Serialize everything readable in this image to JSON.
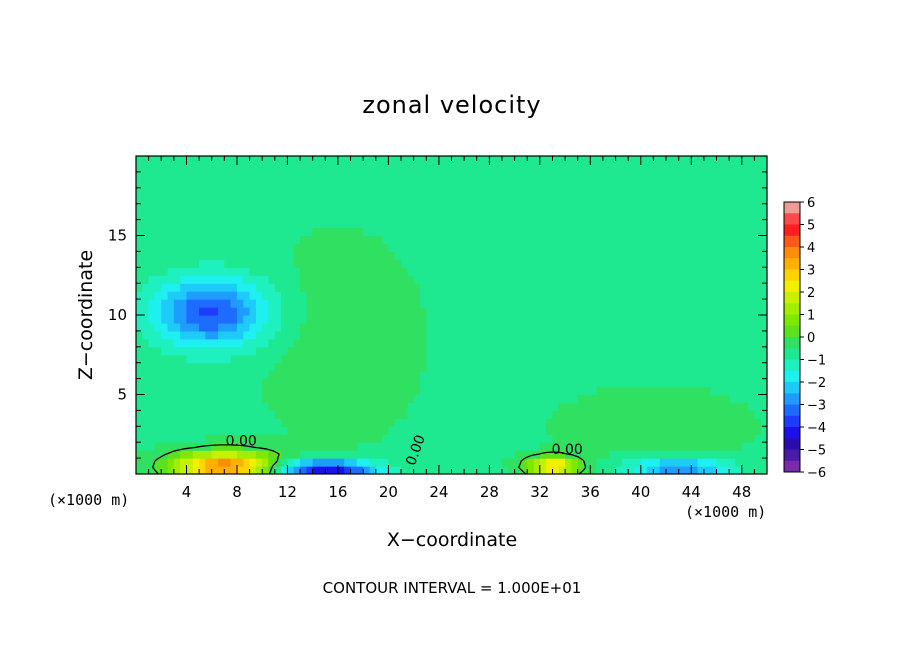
{
  "chart_data": {
    "type": "heatmap",
    "title": "zonal velocity",
    "xlabel": "X−coordinate",
    "ylabel": "Z−coordinate",
    "x_ticks": [
      4,
      8,
      12,
      16,
      20,
      24,
      28,
      32,
      36,
      40,
      44,
      48
    ],
    "y_ticks": [
      5,
      10,
      15
    ],
    "xlim": [
      0,
      50
    ],
    "ylim": [
      0,
      20
    ],
    "x_unit_left": "(×1000 m)",
    "x_unit_right": "(×1000 m)",
    "colorbar": {
      "tick_labels": [
        "6",
        "5",
        "4",
        "3",
        "2",
        "1",
        "0",
        "−1",
        "−2",
        "−3",
        "−4",
        "−5",
        "−6"
      ],
      "levels": [
        {
          "lo": 5.5,
          "hi": 6.0,
          "color": "#f09a9a"
        },
        {
          "lo": 5.0,
          "hi": 5.5,
          "color": "#ff4a4a"
        },
        {
          "lo": 4.5,
          "hi": 5.0,
          "color": "#ff1e1e"
        },
        {
          "lo": 4.0,
          "hi": 4.5,
          "color": "#ff5a1a"
        },
        {
          "lo": 3.5,
          "hi": 4.0,
          "color": "#ff8c0a"
        },
        {
          "lo": 3.0,
          "hi": 3.5,
          "color": "#ffb000"
        },
        {
          "lo": 2.5,
          "hi": 3.0,
          "color": "#ffd400"
        },
        {
          "lo": 2.0,
          "hi": 2.5,
          "color": "#f2f000"
        },
        {
          "lo": 1.5,
          "hi": 2.0,
          "color": "#c8f000"
        },
        {
          "lo": 1.0,
          "hi": 1.5,
          "color": "#a4ec00"
        },
        {
          "lo": 0.5,
          "hi": 1.0,
          "color": "#7ee800"
        },
        {
          "lo": 0.0,
          "hi": 0.5,
          "color": "#5ae21e"
        },
        {
          "lo": -0.5,
          "hi": 0.0,
          "color": "#30e060"
        },
        {
          "lo": -1.0,
          "hi": -0.5,
          "color": "#1ee890"
        },
        {
          "lo": -1.5,
          "hi": -1.0,
          "color": "#1ef0c0"
        },
        {
          "lo": -2.0,
          "hi": -1.5,
          "color": "#1ef0f0"
        },
        {
          "lo": -2.5,
          "hi": -2.0,
          "color": "#1ecaf8"
        },
        {
          "lo": -3.0,
          "hi": -2.5,
          "color": "#1e9cff"
        },
        {
          "lo": -3.5,
          "hi": -3.0,
          "color": "#1e6cff"
        },
        {
          "lo": -4.0,
          "hi": -3.5,
          "color": "#1e3cff"
        },
        {
          "lo": -4.5,
          "hi": -4.0,
          "color": "#1e10e8"
        },
        {
          "lo": -5.0,
          "hi": -4.5,
          "color": "#2a0cb0"
        },
        {
          "lo": -5.5,
          "hi": -5.0,
          "color": "#4a1aa8"
        },
        {
          "lo": -6.0,
          "hi": -5.5,
          "color": "#7a2aa8"
        }
      ]
    },
    "field_features": [
      {
        "kind": "background",
        "value": -0.6
      },
      {
        "kind": "blob",
        "x": 16,
        "z": 8.5,
        "rx": 6,
        "rz": 6,
        "value": 0.4
      },
      {
        "kind": "blob",
        "x": 41,
        "z": 3,
        "rx": 8,
        "rz": 2.5,
        "value": 0.3
      },
      {
        "kind": "blob",
        "x": 6,
        "z": 10.2,
        "rx": 4.5,
        "rz": 2.2,
        "value": -3.0
      },
      {
        "kind": "blob",
        "x": 7,
        "z": 0.5,
        "rx": 4,
        "rz": 0.9,
        "value": 4.5
      },
      {
        "kind": "blob",
        "x": 15,
        "z": 0.3,
        "rx": 4,
        "rz": 0.6,
        "value": -4.0
      },
      {
        "kind": "blob",
        "x": 33,
        "z": 0.5,
        "rx": 2,
        "rz": 0.6,
        "value": 3.5
      },
      {
        "kind": "blob",
        "x": 43,
        "z": 0.4,
        "rx": 4,
        "rz": 0.6,
        "value": -2.5
      }
    ],
    "contour_label": "0.00",
    "contour_label_count": 3,
    "footer": "CONTOUR INTERVAL = 1.000E+01"
  }
}
